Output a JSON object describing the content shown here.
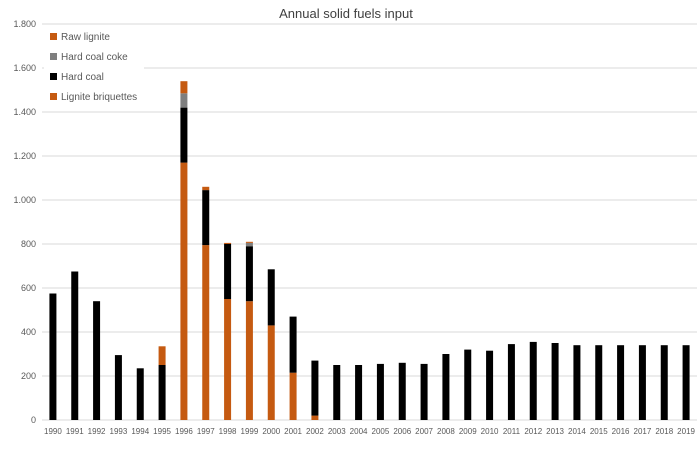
{
  "chart_data": {
    "type": "bar",
    "stacked": true,
    "title": "Annual solid fuels input",
    "xlabel": "",
    "ylabel": "",
    "ylim": [
      0,
      1800
    ],
    "yticks": [
      0,
      200,
      400,
      600,
      800,
      1000,
      1200,
      1400,
      1600,
      1800
    ],
    "ytick_labels": [
      "0",
      "200",
      "400",
      "600",
      "800",
      "1.000",
      "1.200",
      "1.400",
      "1.600",
      "1.800"
    ],
    "grid": true,
    "legend_position": "top-left",
    "categories": [
      "1990",
      "1991",
      "1992",
      "1993",
      "1994",
      "1995",
      "1996",
      "1997",
      "1998",
      "1999",
      "2000",
      "2001",
      "2002",
      "2003",
      "2004",
      "2005",
      "2006",
      "2007",
      "2008",
      "2009",
      "2010",
      "2011",
      "2012",
      "2013",
      "2014",
      "2015",
      "2016",
      "2017",
      "2018",
      "2019"
    ],
    "legend": [
      {
        "name": "Raw lignite",
        "color": "#c55a11"
      },
      {
        "name": "Hard coal coke",
        "color": "#7f7f7f"
      },
      {
        "name": "Hard coal",
        "color": "#000000"
      },
      {
        "name": "Lignite briquettes",
        "color": "#c55a11"
      }
    ],
    "series": [
      {
        "name": "Lignite briquettes",
        "color": "#c55a11",
        "values": [
          0,
          0,
          0,
          0,
          0,
          0,
          1170,
          795,
          550,
          540,
          430,
          215,
          20,
          0,
          0,
          0,
          0,
          0,
          0,
          0,
          0,
          0,
          0,
          0,
          0,
          0,
          0,
          0,
          0,
          0
        ]
      },
      {
        "name": "Hard coal",
        "color": "#000000",
        "values": [
          575,
          675,
          540,
          295,
          235,
          250,
          250,
          250,
          250,
          250,
          255,
          255,
          250,
          250,
          250,
          255,
          260,
          255,
          300,
          320,
          315,
          345,
          355,
          350,
          340,
          340,
          340,
          340,
          340,
          340
        ]
      },
      {
        "name": "Hard coal coke",
        "color": "#7f7f7f",
        "values": [
          0,
          0,
          0,
          0,
          0,
          0,
          65,
          0,
          0,
          15,
          0,
          0,
          0,
          0,
          0,
          0,
          0,
          0,
          0,
          0,
          0,
          0,
          0,
          0,
          0,
          0,
          0,
          0,
          0,
          0
        ]
      },
      {
        "name": "Raw lignite",
        "color": "#c55a11",
        "values": [
          0,
          0,
          0,
          0,
          0,
          85,
          55,
          15,
          5,
          5,
          0,
          0,
          0,
          0,
          0,
          0,
          0,
          0,
          0,
          0,
          0,
          0,
          0,
          0,
          0,
          0,
          0,
          0,
          0,
          0
        ]
      }
    ],
    "colors": {
      "gridline": "#d9d9d9",
      "axis_text": "#595959",
      "title_text": "#404040"
    }
  }
}
